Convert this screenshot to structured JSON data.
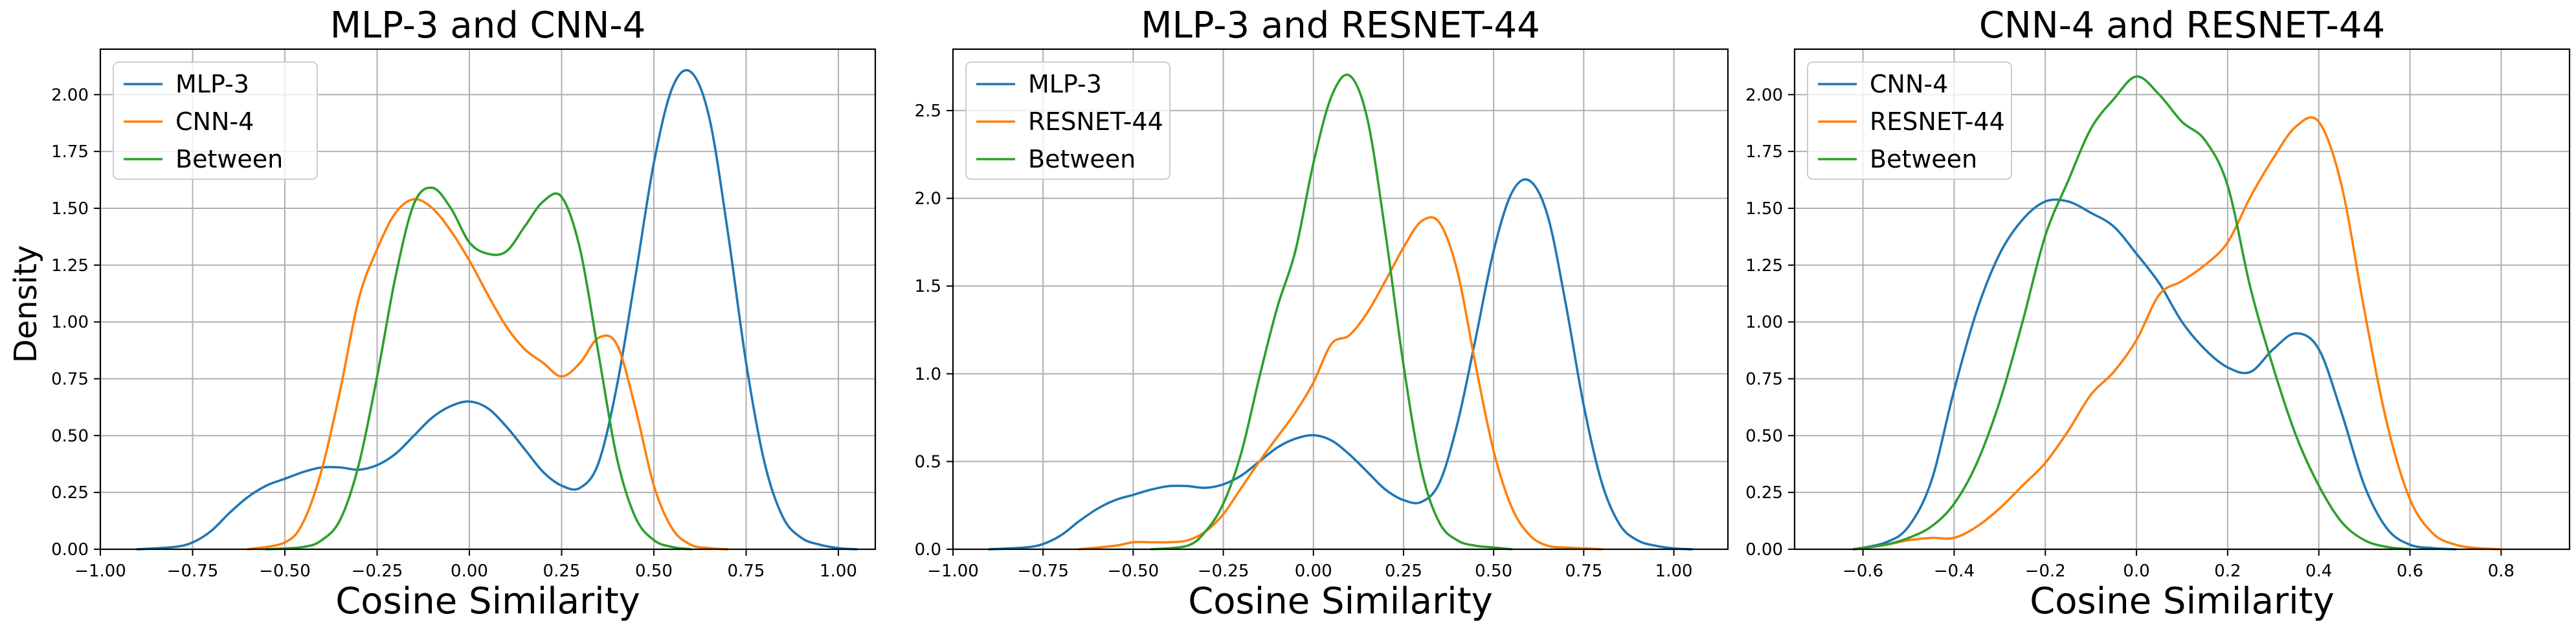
{
  "figure": {
    "shared_ylabel": "Density"
  },
  "chart_data": [
    {
      "type": "line",
      "title": "MLP-3 and CNN-4",
      "xlabel": "Cosine Similarity",
      "ylabel": "Density",
      "xlim": [
        -1.0,
        1.1
      ],
      "ylim": [
        0,
        2.2
      ],
      "xticks": [
        -1.0,
        -0.75,
        -0.5,
        -0.25,
        0.0,
        0.25,
        0.5,
        0.75,
        1.0
      ],
      "xtick_labels": [
        "−1.00",
        "−0.75",
        "−0.50",
        "−0.25",
        "0.00",
        "0.25",
        "0.50",
        "0.75",
        "1.00"
      ],
      "yticks": [
        0.0,
        0.25,
        0.5,
        0.75,
        1.0,
        1.25,
        1.5,
        1.75,
        2.0
      ],
      "ytick_labels": [
        "0.00",
        "0.25",
        "0.50",
        "0.75",
        "1.00",
        "1.25",
        "1.50",
        "1.75",
        "2.00"
      ],
      "grid": true,
      "legend": "upper-left",
      "series": [
        {
          "name": "MLP-3",
          "color": "#1f77b4",
          "x": [
            -0.9,
            -0.8,
            -0.75,
            -0.7,
            -0.65,
            -0.6,
            -0.55,
            -0.5,
            -0.45,
            -0.4,
            -0.35,
            -0.3,
            -0.25,
            -0.2,
            -0.15,
            -0.1,
            -0.05,
            0.0,
            0.05,
            0.1,
            0.15,
            0.2,
            0.25,
            0.3,
            0.35,
            0.4,
            0.45,
            0.5,
            0.55,
            0.6,
            0.65,
            0.7,
            0.75,
            0.8,
            0.85,
            0.9,
            0.95,
            1.0,
            1.05
          ],
          "y": [
            0.0,
            0.01,
            0.03,
            0.08,
            0.16,
            0.23,
            0.28,
            0.31,
            0.34,
            0.36,
            0.36,
            0.35,
            0.37,
            0.42,
            0.5,
            0.58,
            0.63,
            0.65,
            0.62,
            0.54,
            0.44,
            0.34,
            0.28,
            0.27,
            0.38,
            0.72,
            1.2,
            1.7,
            2.03,
            2.1,
            1.9,
            1.4,
            0.82,
            0.38,
            0.14,
            0.05,
            0.02,
            0.005,
            0.0
          ]
        },
        {
          "name": "CNN-4",
          "color": "#ff7f0e",
          "x": [
            -0.6,
            -0.5,
            -0.45,
            -0.4,
            -0.35,
            -0.3,
            -0.25,
            -0.2,
            -0.15,
            -0.1,
            -0.05,
            0.0,
            0.05,
            0.1,
            0.15,
            0.2,
            0.25,
            0.3,
            0.35,
            0.4,
            0.45,
            0.5,
            0.55,
            0.6,
            0.65,
            0.7
          ],
          "y": [
            0.0,
            0.03,
            0.12,
            0.35,
            0.7,
            1.1,
            1.32,
            1.48,
            1.54,
            1.5,
            1.4,
            1.27,
            1.12,
            0.98,
            0.88,
            0.82,
            0.76,
            0.82,
            0.93,
            0.9,
            0.62,
            0.28,
            0.09,
            0.02,
            0.005,
            0.0
          ]
        },
        {
          "name": "Between",
          "color": "#2ca02c",
          "x": [
            -0.55,
            -0.45,
            -0.4,
            -0.35,
            -0.3,
            -0.25,
            -0.2,
            -0.15,
            -0.1,
            -0.05,
            0.0,
            0.05,
            0.1,
            0.15,
            0.2,
            0.25,
            0.3,
            0.35,
            0.4,
            0.45,
            0.5,
            0.55,
            0.6
          ],
          "y": [
            0.0,
            0.01,
            0.04,
            0.13,
            0.37,
            0.76,
            1.2,
            1.52,
            1.59,
            1.5,
            1.35,
            1.3,
            1.31,
            1.42,
            1.53,
            1.55,
            1.32,
            0.86,
            0.4,
            0.14,
            0.04,
            0.01,
            0.0
          ]
        }
      ]
    },
    {
      "type": "line",
      "title": "MLP-3 and RESNET-44",
      "xlabel": "Cosine Similarity",
      "ylabel": "",
      "xlim": [
        -1.0,
        1.15
      ],
      "ylim": [
        0,
        2.85
      ],
      "xticks": [
        -1.0,
        -0.75,
        -0.5,
        -0.25,
        0.0,
        0.25,
        0.5,
        0.75,
        1.0
      ],
      "xtick_labels": [
        "−1.00",
        "−0.75",
        "−0.50",
        "−0.25",
        "0.00",
        "0.25",
        "0.50",
        "0.75",
        "1.00"
      ],
      "yticks": [
        0.0,
        0.5,
        1.0,
        1.5,
        2.0,
        2.5
      ],
      "ytick_labels": [
        "0.0",
        "0.5",
        "1.0",
        "1.5",
        "2.0",
        "2.5"
      ],
      "grid": true,
      "legend": "upper-left",
      "series": [
        {
          "name": "MLP-3",
          "color": "#1f77b4",
          "x": [
            -0.9,
            -0.8,
            -0.75,
            -0.7,
            -0.65,
            -0.6,
            -0.55,
            -0.5,
            -0.45,
            -0.4,
            -0.35,
            -0.3,
            -0.25,
            -0.2,
            -0.15,
            -0.1,
            -0.05,
            0.0,
            0.05,
            0.1,
            0.15,
            0.2,
            0.25,
            0.3,
            0.35,
            0.4,
            0.45,
            0.5,
            0.55,
            0.6,
            0.65,
            0.7,
            0.75,
            0.8,
            0.85,
            0.9,
            0.95,
            1.0,
            1.05
          ],
          "y": [
            0.0,
            0.01,
            0.03,
            0.08,
            0.16,
            0.23,
            0.28,
            0.31,
            0.34,
            0.36,
            0.36,
            0.35,
            0.37,
            0.42,
            0.5,
            0.58,
            0.63,
            0.65,
            0.62,
            0.54,
            0.44,
            0.34,
            0.28,
            0.27,
            0.38,
            0.72,
            1.2,
            1.7,
            2.03,
            2.1,
            1.9,
            1.4,
            0.82,
            0.38,
            0.14,
            0.05,
            0.02,
            0.005,
            0.0
          ]
        },
        {
          "name": "RESNET-44",
          "color": "#ff7f0e",
          "x": [
            -0.65,
            -0.55,
            -0.5,
            -0.45,
            -0.4,
            -0.35,
            -0.3,
            -0.25,
            -0.2,
            -0.15,
            -0.1,
            -0.05,
            0.0,
            0.05,
            0.1,
            0.15,
            0.2,
            0.25,
            0.3,
            0.35,
            0.4,
            0.45,
            0.5,
            0.55,
            0.6,
            0.65,
            0.7,
            0.75,
            0.8
          ],
          "y": [
            0.0,
            0.02,
            0.04,
            0.04,
            0.04,
            0.05,
            0.1,
            0.2,
            0.35,
            0.5,
            0.64,
            0.78,
            0.95,
            1.17,
            1.22,
            1.35,
            1.53,
            1.72,
            1.87,
            1.86,
            1.58,
            1.05,
            0.56,
            0.24,
            0.08,
            0.02,
            0.01,
            0.005,
            0.0
          ]
        },
        {
          "name": "Between",
          "color": "#2ca02c",
          "x": [
            -0.45,
            -0.35,
            -0.3,
            -0.25,
            -0.2,
            -0.15,
            -0.1,
            -0.05,
            0.0,
            0.05,
            0.1,
            0.15,
            0.2,
            0.25,
            0.3,
            0.35,
            0.4,
            0.45,
            0.5,
            0.55
          ],
          "y": [
            0.0,
            0.02,
            0.1,
            0.26,
            0.55,
            0.98,
            1.38,
            1.7,
            2.2,
            2.58,
            2.7,
            2.45,
            1.8,
            1.05,
            0.45,
            0.15,
            0.05,
            0.02,
            0.01,
            0.0
          ]
        }
      ]
    },
    {
      "type": "line",
      "title": "CNN-4 and RESNET-44",
      "xlabel": "Cosine Similarity",
      "ylabel": "",
      "xlim": [
        -0.75,
        0.95
      ],
      "ylim": [
        0,
        2.2
      ],
      "xticks": [
        -0.6,
        -0.4,
        -0.2,
        0.0,
        0.2,
        0.4,
        0.6,
        0.8
      ],
      "xtick_labels": [
        "−0.6",
        "−0.4",
        "−0.2",
        "0.0",
        "0.2",
        "0.4",
        "0.6",
        "0.8"
      ],
      "yticks": [
        0.0,
        0.25,
        0.5,
        0.75,
        1.0,
        1.25,
        1.5,
        1.75,
        2.0
      ],
      "ytick_labels": [
        "0.00",
        "0.25",
        "0.50",
        "0.75",
        "1.00",
        "1.25",
        "1.50",
        "1.75",
        "2.00"
      ],
      "grid": true,
      "legend": "upper-left",
      "series": [
        {
          "name": "CNN-4",
          "color": "#1f77b4",
          "x": [
            -0.62,
            -0.55,
            -0.5,
            -0.45,
            -0.4,
            -0.35,
            -0.3,
            -0.25,
            -0.2,
            -0.15,
            -0.1,
            -0.05,
            0.0,
            0.05,
            0.1,
            0.15,
            0.2,
            0.25,
            0.3,
            0.35,
            0.4,
            0.45,
            0.5,
            0.55,
            0.6,
            0.65,
            0.7
          ],
          "y": [
            0.0,
            0.03,
            0.1,
            0.3,
            0.7,
            1.05,
            1.3,
            1.45,
            1.53,
            1.53,
            1.48,
            1.42,
            1.3,
            1.17,
            1.0,
            0.88,
            0.8,
            0.78,
            0.88,
            0.95,
            0.88,
            0.6,
            0.28,
            0.09,
            0.02,
            0.005,
            0.0
          ]
        },
        {
          "name": "RESNET-44",
          "color": "#ff7f0e",
          "x": [
            -0.62,
            -0.55,
            -0.5,
            -0.45,
            -0.4,
            -0.35,
            -0.3,
            -0.25,
            -0.2,
            -0.15,
            -0.1,
            -0.05,
            0.0,
            0.05,
            0.1,
            0.15,
            0.2,
            0.25,
            0.3,
            0.35,
            0.4,
            0.45,
            0.5,
            0.55,
            0.6,
            0.65,
            0.7,
            0.75,
            0.8
          ],
          "y": [
            0.0,
            0.02,
            0.04,
            0.05,
            0.05,
            0.1,
            0.18,
            0.28,
            0.38,
            0.52,
            0.68,
            0.78,
            0.92,
            1.12,
            1.18,
            1.25,
            1.35,
            1.55,
            1.72,
            1.86,
            1.88,
            1.6,
            1.05,
            0.55,
            0.22,
            0.07,
            0.02,
            0.005,
            0.0
          ]
        },
        {
          "name": "Between",
          "color": "#2ca02c",
          "x": [
            -0.62,
            -0.55,
            -0.5,
            -0.45,
            -0.4,
            -0.35,
            -0.3,
            -0.25,
            -0.2,
            -0.15,
            -0.1,
            -0.05,
            0.0,
            0.05,
            0.1,
            0.15,
            0.2,
            0.25,
            0.3,
            0.35,
            0.4,
            0.45,
            0.5,
            0.55,
            0.6
          ],
          "y": [
            0.0,
            0.02,
            0.05,
            0.1,
            0.2,
            0.38,
            0.65,
            1.0,
            1.38,
            1.62,
            1.85,
            1.98,
            2.08,
            2.0,
            1.88,
            1.8,
            1.6,
            1.15,
            0.8,
            0.5,
            0.28,
            0.12,
            0.04,
            0.01,
            0.0
          ]
        }
      ]
    }
  ]
}
